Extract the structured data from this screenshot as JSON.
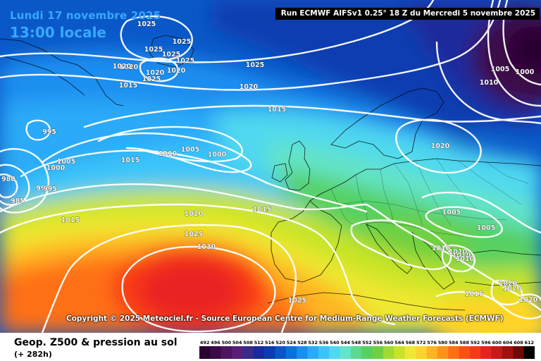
{
  "header": {
    "date_label": "Lundi 17 novembre 2025",
    "time_label": "13:00 locale",
    "run_title": "Run ECMWF AIFSv1 0.25° 18 Z du Mercredi 5 novembre 2025"
  },
  "copyright": "Copyright © 2025 Meteociel.fr - Source European Centre for Medium-Range Weather Forecasts (ECMWF)",
  "legend": {
    "title": "Geop. Z500 & pression au sol",
    "subtitle": "(+ 282h)",
    "scale_values": [
      "492",
      "496",
      "500",
      "504",
      "508",
      "512",
      "516",
      "520",
      "524",
      "528",
      "532",
      "536",
      "540",
      "544",
      "548",
      "552",
      "556",
      "560",
      "564",
      "568",
      "572",
      "576",
      "580",
      "584",
      "588",
      "592",
      "596",
      "600",
      "604",
      "608",
      "612"
    ],
    "scale_colors": [
      "#2a0030",
      "#3c0a48",
      "#4e1462",
      "#5a1e7a",
      "#3a2a8c",
      "#1a2a9c",
      "#0a3cb0",
      "#0a56c8",
      "#0a70dc",
      "#1a8ef0",
      "#2aaaf8",
      "#3ac4fa",
      "#50d8f0",
      "#64e4c8",
      "#5cd890",
      "#56d060",
      "#70d040",
      "#a0dc30",
      "#c8e428",
      "#f0e830",
      "#ffd428",
      "#ffb420",
      "#ff9418",
      "#ff7014",
      "#ff5014",
      "#f83818",
      "#e82020",
      "#c81818",
      "#a01010",
      "#700808",
      "#000000"
    ]
  },
  "isobar_labels": [
    "1025",
    "1025",
    "1025",
    "1025",
    "1025",
    "1025",
    "1020",
    "1020",
    "1020",
    "1020",
    "1015",
    "1025",
    "1020",
    "1015",
    "995",
    "1005",
    "1010",
    "1005",
    "1000",
    "1015",
    "1000",
    "980",
    "999",
    "995",
    "985",
    "1015",
    "1020",
    "1015",
    "1025",
    "1030",
    "1020",
    "1005",
    "1005",
    "1010",
    "1010",
    "1010",
    "1010",
    "1005",
    "1000",
    "1010",
    "1015",
    "1020",
    "1020",
    "1020",
    "1025"
  ],
  "colors": {
    "title_blue": "#39a8ff",
    "isobar": "#ffffff",
    "low_center": "#3a0c3e"
  }
}
